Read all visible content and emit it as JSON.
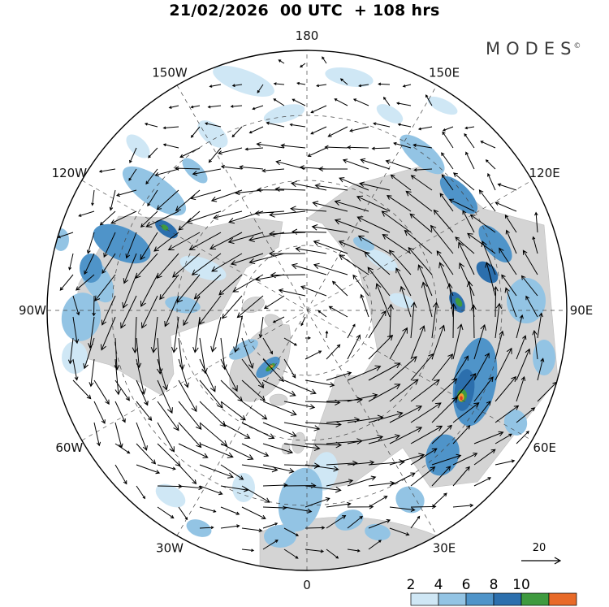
{
  "header": {
    "title": "21/02/2026  00 UTC  + 108 hrs"
  },
  "logo": {
    "text": "MODES",
    "mark": "©"
  },
  "map": {
    "longitude_labels": [
      {
        "label": "180",
        "angle": 0
      },
      {
        "label": "150E",
        "angle": 30
      },
      {
        "label": "120E",
        "angle": 60
      },
      {
        "label": "90E",
        "angle": 90
      },
      {
        "label": "60E",
        "angle": 120
      },
      {
        "label": "30E",
        "angle": 150
      },
      {
        "label": "0",
        "angle": 180
      },
      {
        "label": "30W",
        "angle": 210
      },
      {
        "label": "60W",
        "angle": 240
      },
      {
        "label": "90W",
        "angle": 270
      },
      {
        "label": "120W",
        "angle": 300
      },
      {
        "label": "150W",
        "angle": 330
      }
    ]
  },
  "wind_legend": {
    "reference_label": "20"
  },
  "colorbar": {
    "tick_labels": [
      "2",
      "4",
      "6",
      "8",
      "10"
    ],
    "segment_colors": [
      "#cfe7f5",
      "#93c4e4",
      "#4f94c9",
      "#2c6fad",
      "#3f9a3f",
      "#e86a28"
    ]
  },
  "chart_data": {
    "type": "heatmap",
    "title": "21/02/2026 00 UTC + 108 hrs",
    "date": "21/02/2026",
    "time": "00 UTC",
    "forecast_lead": "+ 108 hrs",
    "brand": "MODES©",
    "projection_view": "north-polar circular map, 0 longitude at bottom, 180 at top",
    "longitude_ring_labels": [
      "180",
      "150E",
      "120E",
      "90E",
      "60E",
      "30E",
      "0",
      "30W",
      "60W",
      "90W",
      "120W",
      "150W"
    ],
    "shading_levels": [
      2,
      4,
      6,
      8,
      10
    ],
    "shading_level_colors": [
      "#cfe7f5",
      "#93c4e4",
      "#4f94c9",
      "#2c6fad",
      "#3f9a3f",
      "#e86a28"
    ],
    "reference_vector_value": "20",
    "depicts": "wind vector arrows over shaded magnitude field with counterclockwise polar vortex circulation"
  }
}
